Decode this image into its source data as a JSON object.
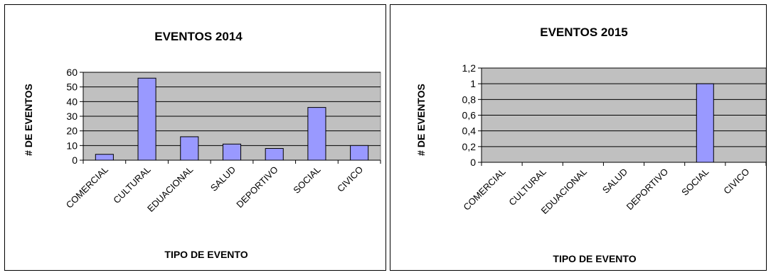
{
  "chart_data": [
    {
      "type": "bar",
      "title": "EVENTOS 2014",
      "xlabel": "TIPO DE EVENTO",
      "ylabel": "# DE EVENTOS",
      "categories": [
        "COMERCIAL",
        "CULTURAL",
        "EDUACIONAL",
        "SALUD",
        "DEPORTIVO",
        "SOCIAL",
        "CIVICO"
      ],
      "values": [
        4,
        56,
        16,
        11,
        8,
        36,
        10
      ],
      "ylim": [
        0,
        60
      ],
      "yticks": [
        "0",
        "10",
        "20",
        "30",
        "40",
        "50",
        "60"
      ],
      "grid": true,
      "legend": "none",
      "colors": {
        "plot_bg": "#c0c0c0",
        "bar": "#9999ff"
      }
    },
    {
      "type": "bar",
      "title": "EVENTOS 2015",
      "xlabel": "TIPO DE EVENTO",
      "ylabel": "# DE EVENTOS",
      "categories": [
        "COMERCIAL",
        "CULTURAL",
        "EDUACIONAL",
        "SALUD",
        "DEPORTIVO",
        "SOCIAL",
        "CIVICO"
      ],
      "values": [
        0,
        0,
        0,
        0,
        0,
        1,
        0
      ],
      "ylim": [
        0,
        1.2
      ],
      "yticks": [
        "0",
        "0,2",
        "0,4",
        "0,6",
        "0,8",
        "1",
        "1,2"
      ],
      "grid": true,
      "legend": "none",
      "colors": {
        "plot_bg": "#c0c0c0",
        "bar": "#9999ff"
      }
    }
  ]
}
